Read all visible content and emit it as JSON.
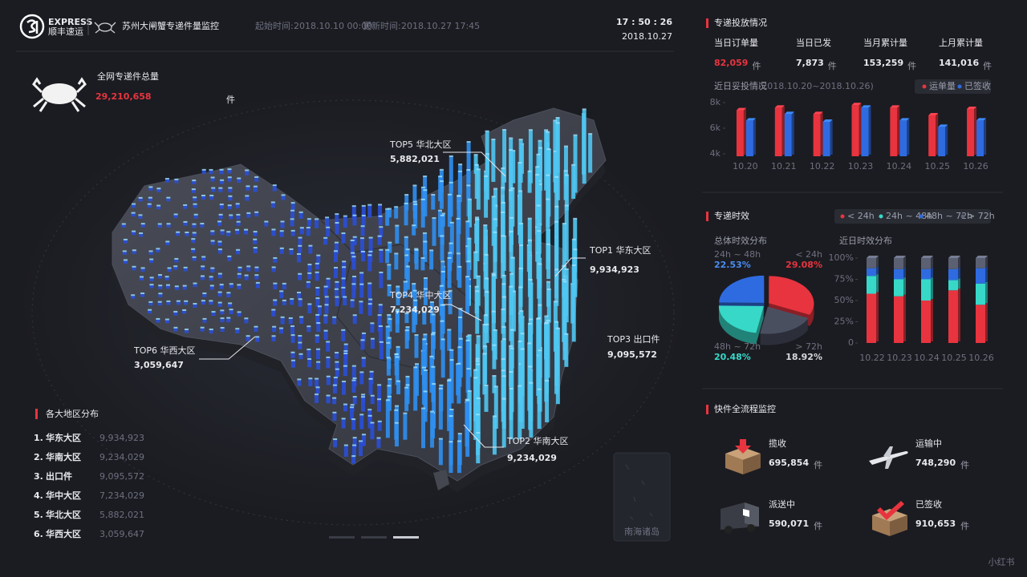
{
  "header": {
    "logo_text": "EXPRESS",
    "logo_sub": "顺丰速运",
    "title": "苏州大闸蟹专递件量监控",
    "start_label": "起始时间:",
    "start_time": "2018.10.10 00:00",
    "update_label": "更新时间:",
    "update_time": "2018.10.27 17:45",
    "clock": "17 : 50 : 26",
    "date": "2018.10.27"
  },
  "total": {
    "label": "全网专递件总量",
    "value": "29,210,658",
    "unit": "件"
  },
  "map": {
    "callouts": [
      {
        "label": "TOP5 华北大区",
        "value": "5,882,021"
      },
      {
        "label": "TOP1 华东大区",
        "value": "9,934,923"
      },
      {
        "label": "TOP4 华中大区",
        "value": "7,234,029"
      },
      {
        "label": "TOP3 出口件",
        "value": "9,095,572"
      },
      {
        "label": "TOP6 华西大区",
        "value": "3,059,647"
      },
      {
        "label": "TOP2 华南大区",
        "value": "9,234,029"
      }
    ],
    "inset": "南海诸岛"
  },
  "regions": {
    "title": "各大地区分布",
    "items": [
      {
        "rank": "1.",
        "name": "华东大区",
        "value": "9,934,923"
      },
      {
        "rank": "2.",
        "name": "华南大区",
        "value": "9,234,029"
      },
      {
        "rank": "3.",
        "name": "出口件",
        "value": "9,095,572"
      },
      {
        "rank": "4.",
        "name": "华中大区",
        "value": "7,234,029"
      },
      {
        "rank": "5.",
        "name": "华北大区",
        "value": "5,882,021"
      },
      {
        "rank": "6.",
        "name": "华西大区",
        "value": "3,059,647"
      }
    ]
  },
  "delivery": {
    "title": "专递投放情况",
    "stats": [
      {
        "label": "当日订单量",
        "value": "82,059",
        "unit": "件"
      },
      {
        "label": "当日已发",
        "value": "7,873",
        "unit": "件"
      },
      {
        "label": "当月累计量",
        "value": "153,259",
        "unit": "件"
      },
      {
        "label": "上月累计量",
        "value": "141,016",
        "unit": "件"
      }
    ]
  },
  "timeliness": {
    "title": "专递时效"
  },
  "flow": {
    "title": "快件全流程监控",
    "items": [
      {
        "label": "揽收",
        "value": "695,854",
        "unit": "件"
      },
      {
        "label": "运输中",
        "value": "748,290",
        "unit": "件"
      },
      {
        "label": "派送中",
        "value": "590,071",
        "unit": "件"
      },
      {
        "label": "已签收",
        "value": "910,653",
        "unit": "件"
      }
    ]
  },
  "watermark": "小红书",
  "chart_data": [
    {
      "type": "bar",
      "title": "近日妥投情况",
      "subtitle": "(2018.10.20~2018.10.26)",
      "categories": [
        "10.20",
        "10.21",
        "10.22",
        "10.23",
        "10.24",
        "10.25",
        "10.26"
      ],
      "series": [
        {
          "name": "运单量",
          "color": "#e8343f",
          "values": [
            7400,
            7600,
            7100,
            7800,
            7600,
            7000,
            7500
          ]
        },
        {
          "name": "已签收",
          "color": "#2f6be0",
          "values": [
            6600,
            7100,
            6500,
            7600,
            6600,
            6100,
            6600
          ]
        }
      ],
      "ylim": [
        4000,
        8000
      ],
      "yticks": [
        {
          "value": 4000,
          "label": "4k"
        },
        {
          "value": 6000,
          "label": "6k"
        },
        {
          "value": 8000,
          "label": "8k"
        }
      ]
    },
    {
      "type": "pie",
      "title": "总体时效分布",
      "categories": [
        "< 24h",
        "24h ~ 48h",
        "48h ~ 72h",
        "> 72h"
      ],
      "values": [
        29.08,
        22.53,
        20.48,
        18.92
      ],
      "value_labels": [
        "29.08%",
        "22.53%",
        "20.48%",
        "18.92%"
      ],
      "colors": [
        "#e8343f",
        "#2f6be0",
        "#37d8c8",
        "#4a4f60"
      ]
    },
    {
      "type": "stacked_bar",
      "title": "近日时效分布",
      "categories": [
        "10.22",
        "10.23",
        "10.24",
        "10.25",
        "10.26"
      ],
      "series": [
        {
          "name": "< 24h",
          "color": "#e8343f",
          "values": [
            58,
            55,
            50,
            62,
            45
          ]
        },
        {
          "name": "24h ~ 48h",
          "color": "#37d8c8",
          "values": [
            21,
            20,
            25,
            12,
            25
          ]
        },
        {
          "name": "48h ~ 72h",
          "color": "#2f6be0",
          "values": [
            9,
            12,
            12,
            13,
            18
          ]
        },
        {
          "name": "> 72h",
          "color": "#5b6072",
          "values": [
            12,
            13,
            13,
            13,
            12
          ]
        }
      ],
      "ylim": [
        0,
        100
      ],
      "yticks": [
        0,
        {
          "value": 25,
          "label": "25%"
        },
        {
          "value": 50,
          "label": "50%"
        },
        {
          "value": 75,
          "label": "75%"
        },
        {
          "value": 100,
          "label": "100%"
        }
      ]
    }
  ]
}
